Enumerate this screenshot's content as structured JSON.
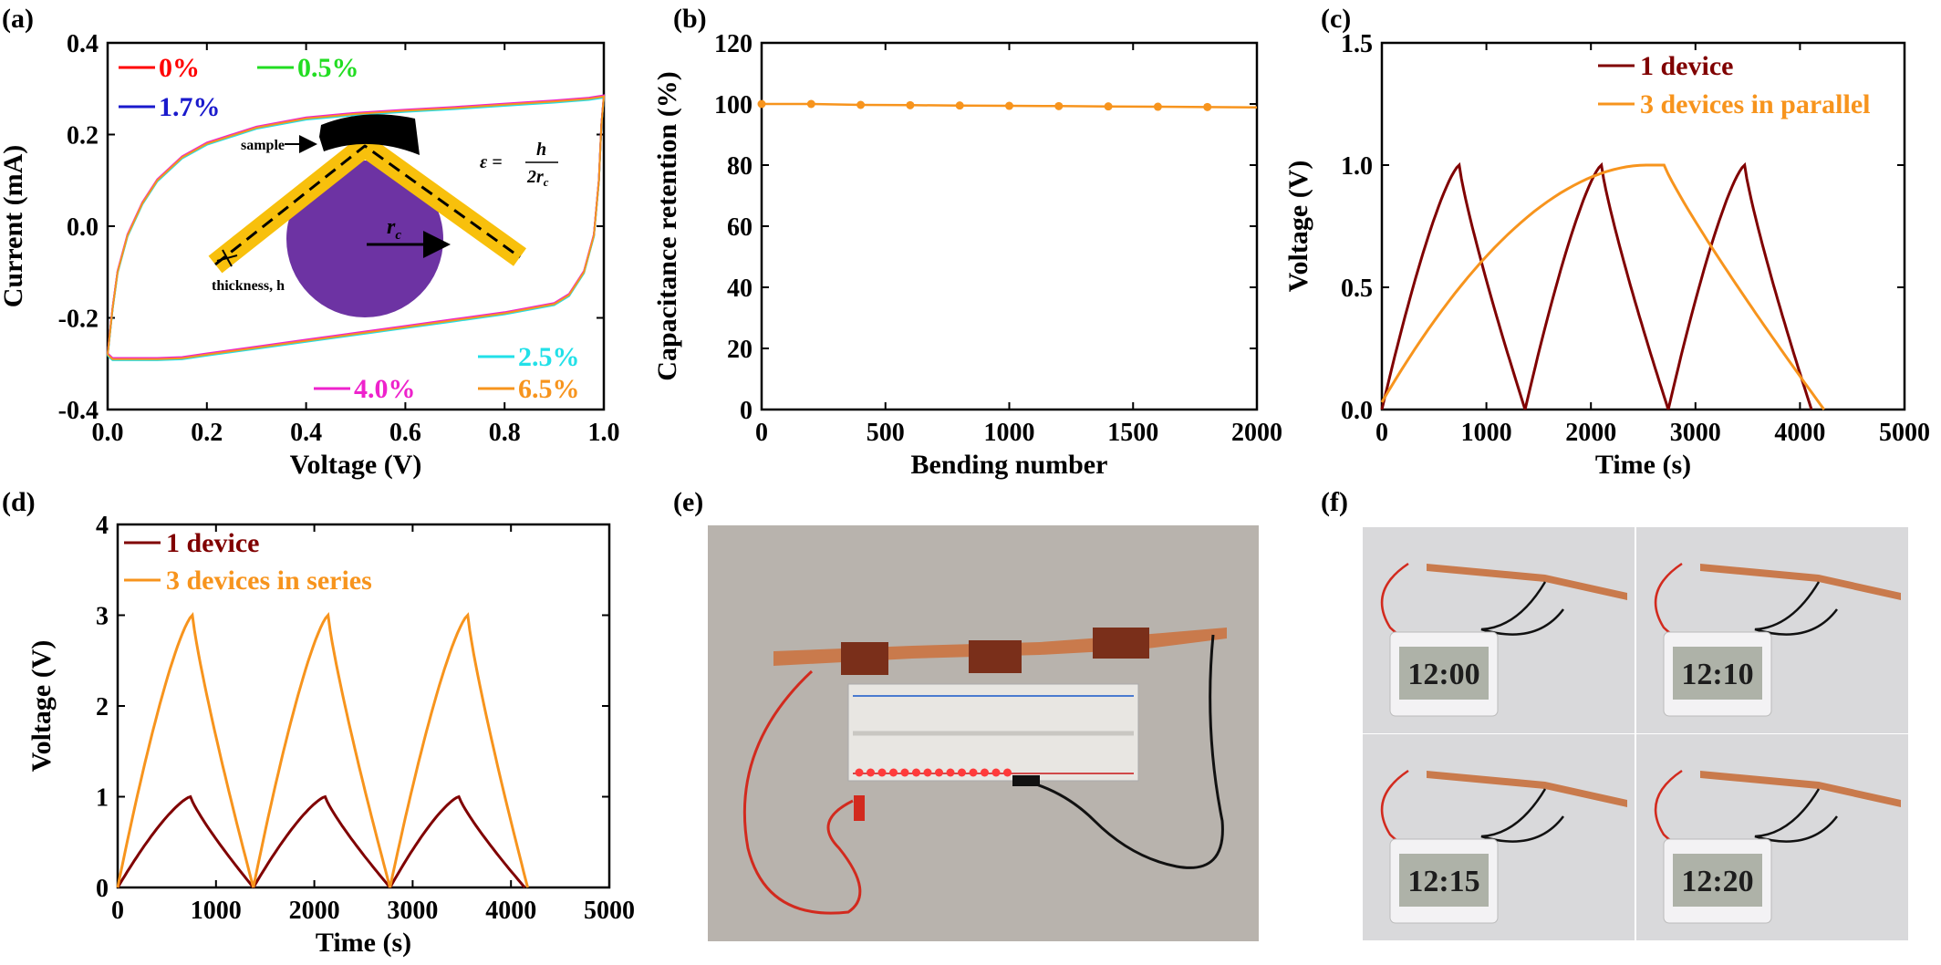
{
  "colors": {
    "dark_red": "#800000",
    "orange": "#f7941d",
    "red": "#ff0000",
    "green": "#22dd22",
    "blue": "#1a1acc",
    "cyan": "#22e0e8",
    "magenta": "#ee22cc",
    "purple": "#6d33a3",
    "gold": "#f8c00c"
  },
  "panels": {
    "a": "(a)",
    "b": "(b)",
    "c": "(c)",
    "d": "(d)",
    "e": "(e)",
    "f": "(f)"
  },
  "inset_a": {
    "sample_label": "sample",
    "thickness_label": "thickness, h",
    "rc_label": "r",
    "rc_sub": "c",
    "strain_eq_left": "ε =",
    "strain_num": "h",
    "strain_den": "2r",
    "strain_den_sub": "c"
  },
  "photo_e": {
    "description_icon": "breadboard-led-photo-icon"
  },
  "photo_f": {
    "clock_readings": [
      "12:00",
      "12:10",
      "12:15",
      "12:20"
    ]
  },
  "chart_data": [
    {
      "id": "a",
      "type": "line",
      "xlabel": "Voltage (V)",
      "ylabel": "Current (mA)",
      "xlim": [
        0.0,
        1.0
      ],
      "ylim": [
        -0.4,
        0.4
      ],
      "xticks": [
        "0.0",
        "0.2",
        "0.4",
        "0.6",
        "0.8",
        "1.0"
      ],
      "yticks": [
        "-0.4",
        "-0.2",
        "0.0",
        "0.2",
        "0.4"
      ],
      "legend": [
        "0%",
        "0.5%",
        "1.7%",
        "2.5%",
        "4.0%",
        "6.5%"
      ],
      "series": [
        {
          "name": "0%",
          "color": "#ff0000"
        },
        {
          "name": "0.5%",
          "color": "#22dd22"
        },
        {
          "name": "1.7%",
          "color": "#1a1acc"
        },
        {
          "name": "2.5%",
          "color": "#22e0e8"
        },
        {
          "name": "4.0%",
          "color": "#ee22cc"
        },
        {
          "name": "6.5%",
          "color": "#f7941d"
        }
      ],
      "upper_branch": [
        [
          0.0,
          -0.28
        ],
        [
          0.01,
          -0.18
        ],
        [
          0.02,
          -0.1
        ],
        [
          0.04,
          -0.02
        ],
        [
          0.07,
          0.05
        ],
        [
          0.1,
          0.1
        ],
        [
          0.15,
          0.15
        ],
        [
          0.2,
          0.18
        ],
        [
          0.3,
          0.215
        ],
        [
          0.4,
          0.235
        ],
        [
          0.5,
          0.245
        ],
        [
          0.6,
          0.252
        ],
        [
          0.7,
          0.258
        ],
        [
          0.8,
          0.265
        ],
        [
          0.9,
          0.272
        ],
        [
          0.97,
          0.278
        ],
        [
          1.0,
          0.283
        ]
      ],
      "lower_branch": [
        [
          1.0,
          0.283
        ],
        [
          0.995,
          0.22
        ],
        [
          0.99,
          0.1
        ],
        [
          0.98,
          -0.02
        ],
        [
          0.96,
          -0.1
        ],
        [
          0.93,
          -0.15
        ],
        [
          0.9,
          -0.17
        ],
        [
          0.8,
          -0.19
        ],
        [
          0.7,
          -0.205
        ],
        [
          0.6,
          -0.22
        ],
        [
          0.5,
          -0.235
        ],
        [
          0.4,
          -0.25
        ],
        [
          0.3,
          -0.265
        ],
        [
          0.2,
          -0.28
        ],
        [
          0.15,
          -0.288
        ],
        [
          0.1,
          -0.29
        ],
        [
          0.05,
          -0.29
        ],
        [
          0.01,
          -0.29
        ],
        [
          0.0,
          -0.28
        ]
      ]
    },
    {
      "id": "b",
      "type": "line",
      "xlabel": "Bending number",
      "ylabel": "Capacitance retention (%)",
      "xlim": [
        0,
        2000
      ],
      "ylim": [
        0,
        120
      ],
      "xticks": [
        "0",
        "500",
        "1000",
        "1500",
        "2000"
      ],
      "yticks": [
        "0",
        "20",
        "40",
        "60",
        "80",
        "100",
        "120"
      ],
      "x": [
        0,
        200,
        400,
        600,
        800,
        1000,
        1200,
        1400,
        1600,
        1800
      ],
      "y": [
        100,
        100,
        99.7,
        99.6,
        99.5,
        99.4,
        99.3,
        99.2,
        99.1,
        99.0
      ],
      "line_end": [
        2000,
        98.9
      ],
      "color": "#f7941d"
    },
    {
      "id": "c",
      "type": "line",
      "xlabel": "Time (s)",
      "ylabel": "Voltage (V)",
      "xlim": [
        0,
        5000
      ],
      "ylim": [
        0.0,
        1.5
      ],
      "xticks": [
        "0",
        "1000",
        "2000",
        "3000",
        "4000",
        "5000"
      ],
      "yticks": [
        "0.0",
        "0.5",
        "1.0",
        "1.5"
      ],
      "series": [
        {
          "name": "1 device",
          "color": "#800000",
          "cycles": [
            [
              0,
              740,
              1370
            ],
            [
              1370,
              2100,
              2740
            ],
            [
              2740,
              3470,
              4110
            ]
          ],
          "vmax": 1.0
        },
        {
          "name": "3 devices in parallel",
          "color": "#f7941d",
          "charge": [
            0,
            2530
          ],
          "hold": [
            2530,
            2700
          ],
          "discharge": [
            2700,
            4230
          ],
          "vmax": 1.0
        }
      ]
    },
    {
      "id": "d",
      "type": "line",
      "xlabel": "Time (s)",
      "ylabel": "Voltage (V)",
      "xlim": [
        0,
        5000
      ],
      "ylim": [
        0,
        4
      ],
      "xticks": [
        "0",
        "1000",
        "2000",
        "3000",
        "4000",
        "5000"
      ],
      "yticks": [
        "0",
        "1",
        "2",
        "3",
        "4"
      ],
      "series": [
        {
          "name": "1 device",
          "color": "#800000",
          "cycles": [
            [
              0,
              740,
              1380
            ],
            [
              1380,
              2110,
              2770
            ],
            [
              2770,
              3470,
              4140
            ]
          ],
          "vmax": 1.0
        },
        {
          "name": "3 devices in series",
          "color": "#f7941d",
          "cycles": [
            [
              0,
              760,
              1380
            ],
            [
              1380,
              2140,
              2770
            ],
            [
              2770,
              3560,
              4170
            ]
          ],
          "vmax": 3.0
        }
      ]
    }
  ]
}
